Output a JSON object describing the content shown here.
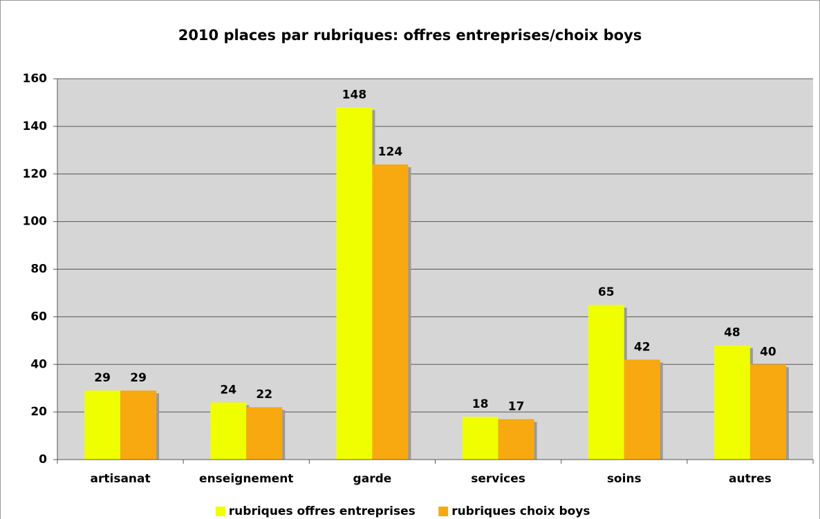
{
  "chart_data": {
    "type": "bar",
    "title": "2010 places par rubriques: offres entreprises/choix boys",
    "categories": [
      "artisanat",
      "enseignement",
      "garde",
      "services",
      "soins",
      "autres"
    ],
    "series": [
      {
        "name": "rubriques offres entreprises",
        "color": "#f0ff00",
        "values": [
          29,
          24,
          148,
          18,
          65,
          48
        ]
      },
      {
        "name": "rubriques choix boys",
        "color": "#f8a90f",
        "values": [
          29,
          22,
          124,
          17,
          42,
          40
        ]
      }
    ],
    "ylim": [
      0,
      160
    ],
    "yticks": [
      0,
      20,
      40,
      60,
      80,
      100,
      120,
      140,
      160
    ],
    "grid": true,
    "legend": "bottom"
  }
}
